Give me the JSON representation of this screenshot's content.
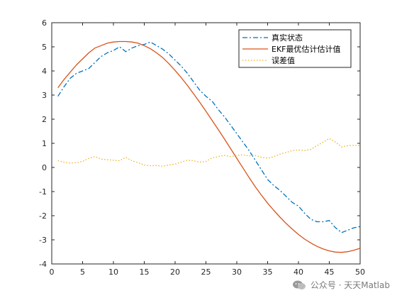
{
  "chart_data": {
    "type": "line",
    "x": [
      1,
      2,
      3,
      4,
      5,
      6,
      7,
      8,
      9,
      10,
      11,
      12,
      13,
      14,
      15,
      16,
      17,
      18,
      19,
      20,
      21,
      22,
      23,
      24,
      25,
      26,
      27,
      28,
      29,
      30,
      31,
      32,
      33,
      34,
      35,
      36,
      37,
      38,
      39,
      40,
      41,
      42,
      43,
      44,
      45,
      46,
      47,
      48,
      49,
      50
    ],
    "xlim": [
      0,
      50
    ],
    "ylim": [
      -4,
      6
    ],
    "xticks": [
      0,
      5,
      10,
      15,
      20,
      25,
      30,
      35,
      40,
      45,
      50
    ],
    "yticks": [
      -4,
      -3,
      -2,
      -1,
      0,
      1,
      2,
      3,
      4,
      5,
      6
    ],
    "grid": false,
    "legend_position": "top-right",
    "series": [
      {
        "name": "真实状态",
        "color": "#0072BD",
        "style": "dashdot",
        "values": [
          2.95,
          3.35,
          3.7,
          3.9,
          4.0,
          4.1,
          4.35,
          4.6,
          4.75,
          4.85,
          5.0,
          4.8,
          4.95,
          5.05,
          5.1,
          5.2,
          5.05,
          4.9,
          4.7,
          4.45,
          4.2,
          3.9,
          3.55,
          3.2,
          2.95,
          2.75,
          2.4,
          2.1,
          1.75,
          1.4,
          1.05,
          0.7,
          0.3,
          -0.1,
          -0.5,
          -0.75,
          -0.95,
          -1.2,
          -1.45,
          -1.6,
          -1.9,
          -2.15,
          -2.25,
          -2.25,
          -2.2,
          -2.5,
          -2.7,
          -2.6,
          -2.5,
          -2.45
        ]
      },
      {
        "name": "EKF最优估计估计值",
        "color": "#D95319",
        "style": "solid",
        "values": [
          3.3,
          3.65,
          3.95,
          4.25,
          4.5,
          4.75,
          4.95,
          5.05,
          5.15,
          5.2,
          5.22,
          5.22,
          5.2,
          5.15,
          5.05,
          4.92,
          4.75,
          4.55,
          4.3,
          4.02,
          3.72,
          3.4,
          3.05,
          2.7,
          2.33,
          1.95,
          1.57,
          1.18,
          0.78,
          0.38,
          -0.02,
          -0.42,
          -0.8,
          -1.15,
          -1.48,
          -1.78,
          -2.06,
          -2.32,
          -2.56,
          -2.78,
          -2.97,
          -3.13,
          -3.27,
          -3.38,
          -3.46,
          -3.51,
          -3.52,
          -3.49,
          -3.43,
          -3.35
        ]
      },
      {
        "name": "误差值",
        "color": "#EDB120",
        "style": "dotted",
        "values": [
          0.28,
          0.22,
          0.18,
          0.2,
          0.25,
          0.38,
          0.45,
          0.35,
          0.32,
          0.3,
          0.28,
          0.42,
          0.28,
          0.2,
          0.1,
          0.07,
          0.08,
          0.05,
          0.1,
          0.14,
          0.22,
          0.3,
          0.28,
          0.22,
          0.25,
          0.4,
          0.45,
          0.5,
          0.45,
          0.5,
          0.52,
          0.48,
          0.5,
          0.42,
          0.38,
          0.45,
          0.55,
          0.62,
          0.7,
          0.72,
          0.7,
          0.75,
          0.9,
          1.05,
          1.2,
          1.05,
          0.85,
          0.9,
          0.92,
          0.9
        ]
      }
    ]
  },
  "watermark": {
    "text": "公众号 · 天天Matlab"
  }
}
